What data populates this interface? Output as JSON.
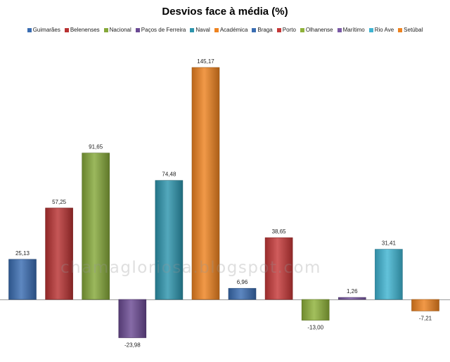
{
  "chart_data": {
    "type": "bar",
    "title": "Desvios face à média (%)",
    "xlabel": "",
    "ylabel": "",
    "ylim": [
      -30,
      150
    ],
    "grid": false,
    "legend_position": "top",
    "categories": [
      "Guimarães",
      "Belenenses",
      "Nacional",
      "Paços de Ferreira",
      "Naval",
      "Académica",
      "Braga",
      "Porto",
      "Olhanense",
      "Marítimo",
      "Rio Ave",
      "Setúbal"
    ],
    "values": [
      25.13,
      57.25,
      91.65,
      -23.98,
      74.48,
      145.17,
      6.96,
      38.65,
      -13.0,
      1.26,
      31.41,
      -7.21
    ],
    "value_labels": [
      "25,13",
      "57,25",
      "91,65",
      "-23,98",
      "74,48",
      "145,17",
      "6,96",
      "38,65",
      "-13,00",
      "1,26",
      "31,41",
      "-7,21"
    ],
    "colors": [
      "#3a6db2",
      "#b83232",
      "#85a83a",
      "#6b4a94",
      "#2d95ad",
      "#ee8320",
      "#3a6db2",
      "#c63838",
      "#8fb23a",
      "#7b5aa6",
      "#3fb4d2",
      "#ee8320"
    ]
  },
  "watermark": "chamagloriosa.blogspot.com"
}
